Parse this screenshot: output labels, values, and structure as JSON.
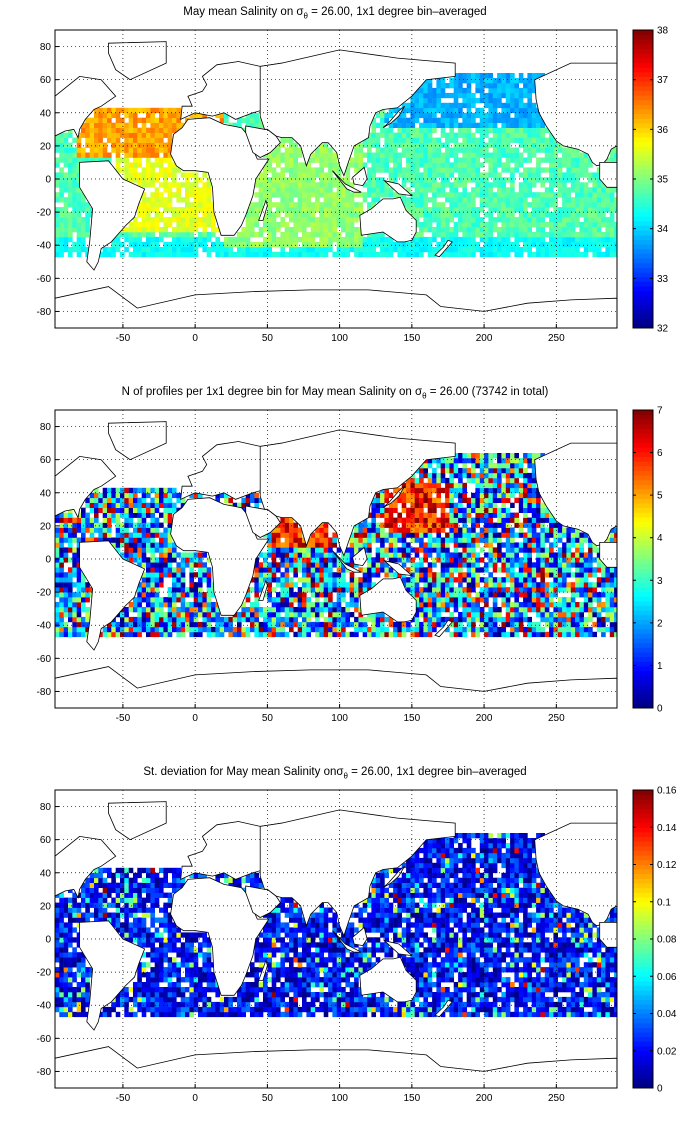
{
  "panels": [
    {
      "title": {
        "pre": "May mean Salinity on ",
        "sym": "σ",
        "sub": "θ",
        "post": " = 26.00, 1x1 degree bin–averaged"
      },
      "colorbar": {
        "ticks": [
          "32",
          "33",
          "34",
          "35",
          "36",
          "37",
          "38"
        ],
        "min": 32,
        "max": 38
      }
    },
    {
      "title": {
        "pre": "N of profiles per 1x1 degree bin for May mean Salinity on ",
        "sym": "σ",
        "sub": "θ",
        "post": " = 26.00 (73742 in total)"
      },
      "colorbar": {
        "ticks": [
          "0",
          "1",
          "2",
          "3",
          "4",
          "5",
          "6",
          "7"
        ],
        "min": 0,
        "max": 7
      }
    },
    {
      "title": {
        "pre": "St. deviation for May mean Salinity on",
        "sym": "σ",
        "sub": "θ",
        "post": " = 26.00, 1x1 degree bin–averaged"
      },
      "colorbar": {
        "ticks": [
          "0",
          "0.02",
          "0.04",
          "0.06",
          "0.08",
          "0.1",
          "0.12",
          "0.14",
          "0.16"
        ],
        "min": 0,
        "max": 0.16
      }
    }
  ],
  "map_axes": {
    "x_ticks": [
      "-50",
      "0",
      "50",
      "100",
      "150",
      "200",
      "250"
    ],
    "y_ticks": [
      "80",
      "60",
      "40",
      "20",
      "0",
      "-20",
      "-40",
      "-60",
      "-80"
    ],
    "xlim": [
      -97,
      292
    ],
    "ylim": [
      -90,
      90
    ],
    "grid": "dotted"
  },
  "colormap": "jet"
}
